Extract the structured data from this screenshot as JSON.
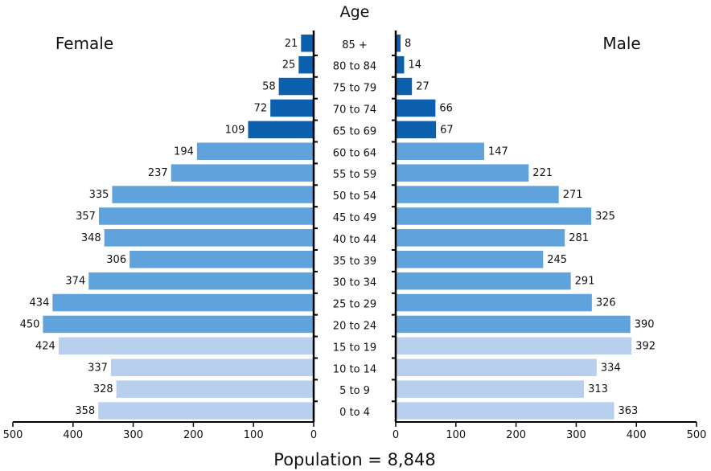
{
  "chart_data": {
    "type": "bar",
    "subtype": "population-pyramid",
    "axis_title": "Age",
    "female_label": "Female",
    "male_label": "Male",
    "footer": "Population = 8,848",
    "categories": [
      "0 to 4",
      "5 to 9",
      "10 to 14",
      "15 to 19",
      "20 to 24",
      "25 to 29",
      "30 to 34",
      "35 to 39",
      "40 to 44",
      "45 to 49",
      "50 to 54",
      "55 to 59",
      "60 to 64",
      "65 to 69",
      "70 to 74",
      "75 to 79",
      "80 to 84",
      "85 +"
    ],
    "series": [
      {
        "name": "Female",
        "values": [
          358,
          328,
          337,
          424,
          450,
          434,
          374,
          306,
          348,
          357,
          335,
          237,
          194,
          109,
          72,
          58,
          25,
          21
        ]
      },
      {
        "name": "Male",
        "values": [
          363,
          313,
          334,
          392,
          390,
          326,
          291,
          245,
          281,
          325,
          271,
          221,
          147,
          67,
          66,
          27,
          14,
          8
        ]
      }
    ],
    "xlim": [
      0,
      500
    ],
    "x_ticks": [
      0,
      100,
      200,
      300,
      400,
      500
    ],
    "group_colors": {
      "young": "#b8d0ee",
      "working": "#5fa2dc",
      "senior": "#0b5fad"
    },
    "group_ranges": {
      "young": [
        "0 to 4",
        "5 to 9",
        "10 to 14",
        "15 to 19"
      ],
      "working": [
        "20 to 24",
        "25 to 29",
        "30 to 34",
        "35 to 39",
        "40 to 44",
        "45 to 49",
        "50 to 54",
        "55 to 59",
        "60 to 64"
      ],
      "senior": [
        "65 to 69",
        "70 to 74",
        "75 to 79",
        "80 to 84",
        "85 +"
      ]
    }
  }
}
